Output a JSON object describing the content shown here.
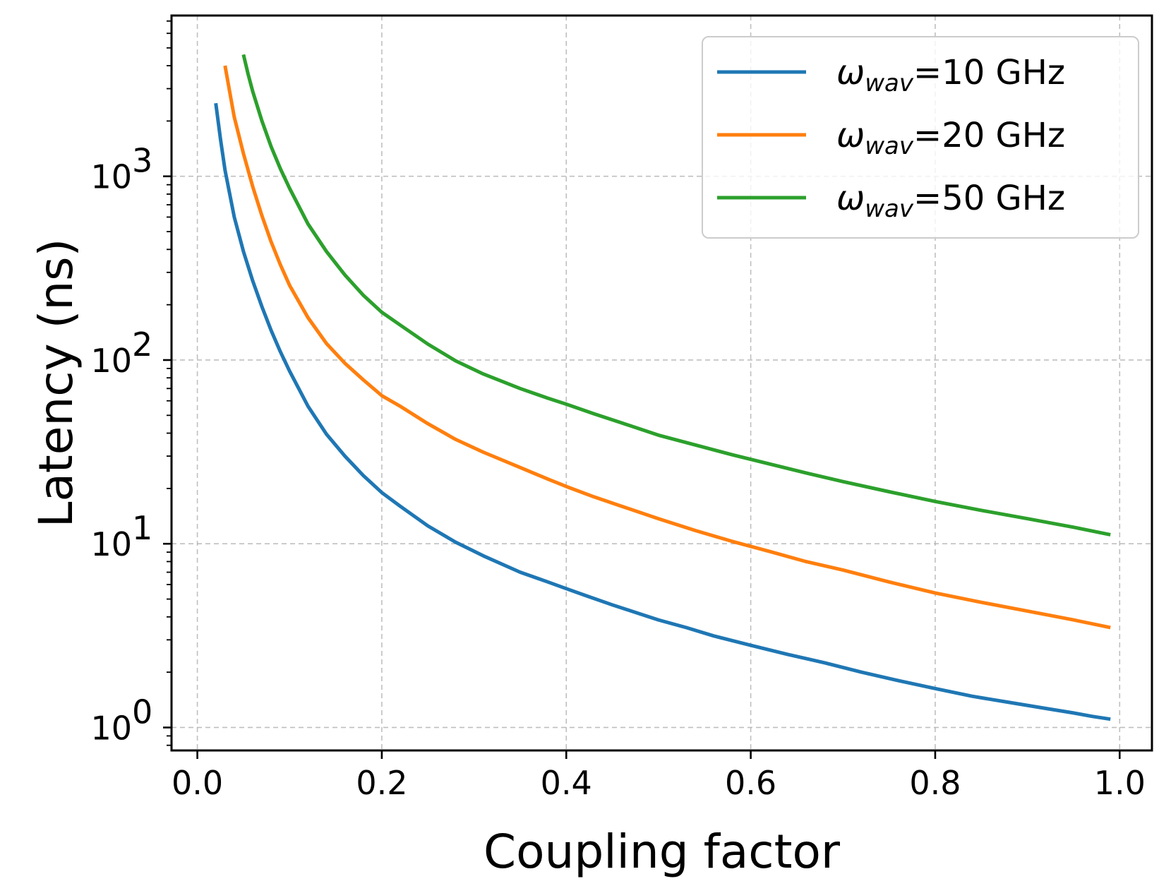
{
  "chart_data": {
    "type": "line",
    "title": "",
    "xlabel": "Coupling factor",
    "ylabel": "Latency (ns)",
    "xlim": [
      -0.028,
      1.035
    ],
    "ylim": [
      0.75,
      7500
    ],
    "yscale": "log",
    "grid": true,
    "legend_position": "top-right",
    "x_ticks": [
      {
        "value": 0.0,
        "label": "0.0"
      },
      {
        "value": 0.2,
        "label": "0.2"
      },
      {
        "value": 0.4,
        "label": "0.4"
      },
      {
        "value": 0.6,
        "label": "0.6"
      },
      {
        "value": 0.8,
        "label": "0.8"
      },
      {
        "value": 1.0,
        "label": "1.0"
      }
    ],
    "y_ticks": [
      {
        "value": 1,
        "base": "10",
        "exp": "0"
      },
      {
        "value": 10,
        "base": "10",
        "exp": "1"
      },
      {
        "value": 100,
        "base": "10",
        "exp": "2"
      },
      {
        "value": 1000,
        "base": "10",
        "exp": "3"
      }
    ],
    "series": [
      {
        "name": "ω_wav=10 GHz",
        "legend_symbol": "ω",
        "legend_sub": "wav",
        "legend_rest": "=10 GHz",
        "color": "#1f77b4",
        "x": [
          0.02,
          0.025,
          0.03,
          0.04,
          0.05,
          0.06,
          0.07,
          0.08,
          0.09,
          0.1,
          0.12,
          0.14,
          0.16,
          0.18,
          0.2,
          0.22,
          0.25,
          0.28,
          0.31,
          0.35,
          0.38,
          0.4,
          0.42,
          0.45,
          0.48,
          0.5,
          0.53,
          0.56,
          0.6,
          0.64,
          0.68,
          0.72,
          0.76,
          0.8,
          0.84,
          0.88,
          0.92,
          0.95,
          0.97,
          0.99
        ],
        "values": [
          2500,
          1600,
          1080,
          600,
          390,
          270,
          195,
          145,
          111,
          87,
          56,
          39.5,
          30,
          23.5,
          19,
          16,
          12.5,
          10.2,
          8.6,
          7.0,
          6.2,
          5.7,
          5.25,
          4.65,
          4.15,
          3.85,
          3.5,
          3.15,
          2.8,
          2.5,
          2.25,
          2.0,
          1.8,
          1.63,
          1.48,
          1.37,
          1.27,
          1.2,
          1.15,
          1.11
        ]
      },
      {
        "name": "ω_wav=20 GHz",
        "legend_symbol": "ω",
        "legend_sub": "wav",
        "legend_rest": "=20 GHz",
        "color": "#ff7f0e",
        "x": [
          0.03,
          0.035,
          0.04,
          0.05,
          0.06,
          0.07,
          0.08,
          0.09,
          0.1,
          0.12,
          0.14,
          0.16,
          0.18,
          0.2,
          0.22,
          0.25,
          0.28,
          0.31,
          0.35,
          0.38,
          0.4,
          0.43,
          0.46,
          0.5,
          0.54,
          0.58,
          0.62,
          0.66,
          0.7,
          0.75,
          0.8,
          0.85,
          0.9,
          0.95,
          0.99
        ],
        "values": [
          4000,
          2900,
          2100,
          1330,
          880,
          610,
          440,
          330,
          255,
          170,
          123,
          96,
          78,
          64,
          56,
          45,
          37,
          31.5,
          26,
          22.5,
          20.5,
          18,
          16,
          13.7,
          11.8,
          10.3,
          9.1,
          8.0,
          7.2,
          6.2,
          5.4,
          4.8,
          4.3,
          3.85,
          3.5
        ]
      },
      {
        "name": "ω_wav=50 GHz",
        "legend_symbol": "ω",
        "legend_sub": "wav",
        "legend_rest": "=50 GHz",
        "color": "#2ca02c",
        "x": [
          0.05,
          0.055,
          0.06,
          0.07,
          0.08,
          0.09,
          0.1,
          0.12,
          0.14,
          0.16,
          0.18,
          0.2,
          0.22,
          0.25,
          0.28,
          0.31,
          0.35,
          0.38,
          0.4,
          0.43,
          0.46,
          0.5,
          0.54,
          0.58,
          0.62,
          0.66,
          0.7,
          0.75,
          0.8,
          0.85,
          0.9,
          0.95,
          0.99
        ],
        "values": [
          4600,
          3600,
          2900,
          2000,
          1450,
          1100,
          860,
          550,
          390,
          290,
          225,
          182,
          155,
          122,
          99,
          84,
          70,
          62,
          57.5,
          51,
          45.5,
          39,
          34.5,
          30.5,
          27.2,
          24.3,
          21.8,
          19.2,
          17,
          15.2,
          13.7,
          12.3,
          11.2
        ]
      }
    ]
  }
}
